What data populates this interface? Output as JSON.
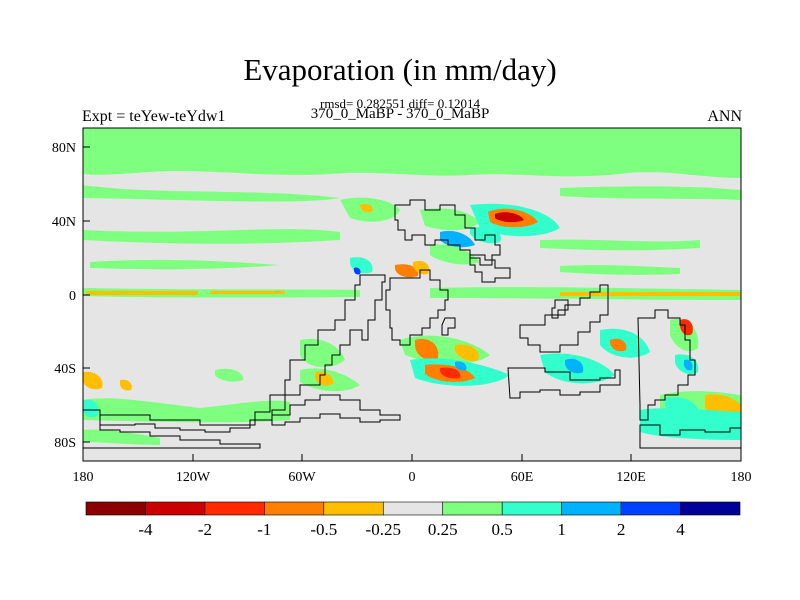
{
  "header": {
    "title": "Evaporation (in mm/day)",
    "stats": "rmsd= 0.282551 diff= 0.12014",
    "expt": "Expt = teYew-teYdw1",
    "case": "370_0_MaBP - 370_0_MaBP",
    "season": "ANN"
  },
  "axes": {
    "y_ticks": [
      "80N",
      "40N",
      "0",
      "40S",
      "80S"
    ],
    "x_ticks": [
      "180",
      "120W",
      "60W",
      "0",
      "60E",
      "120E",
      "180"
    ]
  },
  "colorbar": {
    "colors": [
      "#8b0000",
      "#cc0000",
      "#ff2a00",
      "#ff7f00",
      "#ffbf00",
      "#e5e5e5",
      "#7fff7f",
      "#33ffcc",
      "#00b2ff",
      "#0040ff",
      "#000099"
    ],
    "labels": [
      "-4",
      "-2",
      "-1",
      "-0.5",
      "-0.25",
      "0.25",
      "0.5",
      "1",
      "2",
      "4"
    ]
  }
}
